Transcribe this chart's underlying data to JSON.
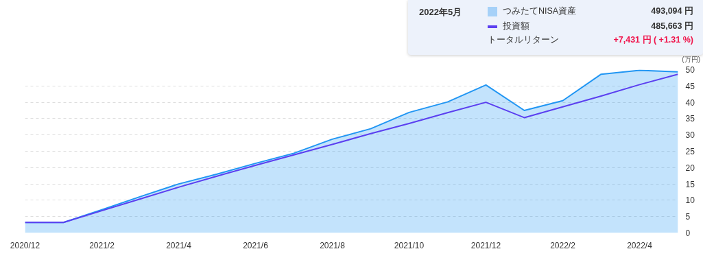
{
  "chart_data": {
    "type": "area",
    "ylabel": "(万円)",
    "categories": [
      "2020/12",
      null,
      "2021/2",
      null,
      "2021/4",
      null,
      "2021/6",
      null,
      "2021/8",
      null,
      "2021/10",
      null,
      "2021/12",
      null,
      "2022/2",
      null,
      "2022/4",
      null
    ],
    "series": [
      {
        "name": "つみたてNISA資産",
        "color": "#2196f3",
        "values": [
          3.2,
          3.2,
          7.1,
          11.1,
          15.0,
          18.0,
          21.3,
          24.4,
          28.7,
          31.9,
          36.9,
          40.1,
          45.3,
          37.5,
          40.5,
          48.6,
          49.8,
          49.3
        ]
      },
      {
        "name": "投資額",
        "type": "line",
        "color": "#5b3ff0",
        "values": [
          3.2,
          3.2,
          6.8,
          10.4,
          14.0,
          17.4,
          20.7,
          23.9,
          27.1,
          30.4,
          33.5,
          36.8,
          40.0,
          35.3,
          38.6,
          41.9,
          45.4,
          48.6
        ]
      }
    ],
    "ylim": [
      0,
      50
    ],
    "yticks": [
      0,
      5,
      10,
      15,
      20,
      25,
      30,
      35,
      40,
      45,
      50
    ],
    "grid": "y",
    "legend": "top right",
    "annotations": [
      "2022年5月",
      "493,094 円",
      "485,663 円",
      "トータルリターン",
      "+7,431 円 ( +1.31 %)"
    ]
  }
}
